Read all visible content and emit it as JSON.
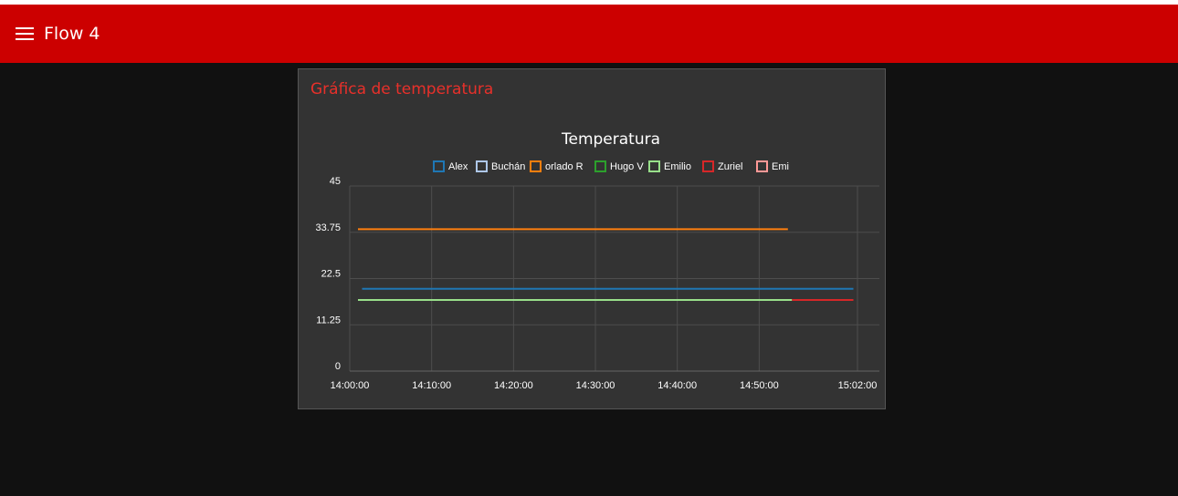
{
  "toolbar": {
    "title": "Flow 4",
    "menu_icon": "hamburger-menu-icon",
    "background": "#cc0000"
  },
  "card": {
    "title": "Gráfica de temperatura",
    "title_color": "#e8302a"
  },
  "chart_data": {
    "type": "line",
    "title": "Temperatura",
    "xlabel": "",
    "ylabel": "",
    "x_axis_type": "time",
    "x_range": [
      "14:00:00",
      "15:02:00"
    ],
    "x_ticks": [
      "14:00:00",
      "14:10:00",
      "14:20:00",
      "14:30:00",
      "14:40:00",
      "14:50:00",
      "15:02:00"
    ],
    "ylim": [
      0,
      45
    ],
    "y_ticks": [
      "0",
      "11.25",
      "22.5",
      "33.75",
      "45"
    ],
    "grid": true,
    "legend_position": "top",
    "series": [
      {
        "name": "Alex",
        "color": "#1f77b4",
        "points": [
          [
            "14:01:30",
            20
          ],
          [
            "15:01:30",
            20
          ]
        ]
      },
      {
        "name": "Buchán",
        "color": "#aec7e8",
        "points": []
      },
      {
        "name": "orlado R",
        "color": "#ff7f0e",
        "points": [
          [
            "14:01:00",
            34.5
          ],
          [
            "14:53:30",
            34.5
          ]
        ]
      },
      {
        "name": "Hugo V",
        "color": "#2ca02c",
        "points": []
      },
      {
        "name": "Emilio",
        "color": "#98df8a",
        "points": [
          [
            "14:01:00",
            17.3
          ],
          [
            "14:54:00",
            17.3
          ]
        ]
      },
      {
        "name": "Zuriel",
        "color": "#d62728",
        "points": [
          [
            "14:54:00",
            17.3
          ],
          [
            "15:01:30",
            17.3
          ]
        ]
      },
      {
        "name": "Emi",
        "color": "#ff9896",
        "points": []
      }
    ]
  }
}
